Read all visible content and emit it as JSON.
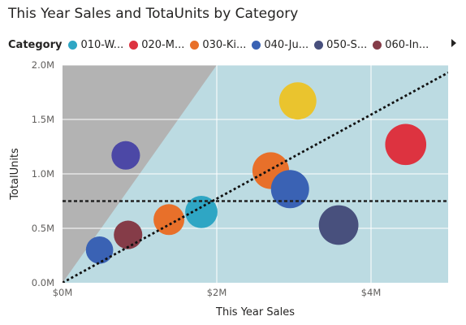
{
  "chart_data": {
    "type": "scatter",
    "title": "This Year Sales and TotaUnits by Category",
    "xlabel": "This Year Sales",
    "ylabel": "TotalUnits",
    "xlim": [
      0,
      5000000
    ],
    "ylim": [
      0,
      2000000
    ],
    "x_ticks": [
      {
        "value": 0,
        "label": "$0M"
      },
      {
        "value": 2000000,
        "label": "$2M"
      },
      {
        "value": 4000000,
        "label": "$4M"
      }
    ],
    "y_ticks": [
      {
        "value": 0,
        "label": "0.0M"
      },
      {
        "value": 500000,
        "label": "0.5M"
      },
      {
        "value": 1000000,
        "label": "1.0M"
      },
      {
        "value": 1500000,
        "label": "1.5M"
      },
      {
        "value": 2000000,
        "label": "2.0M"
      }
    ],
    "legend": {
      "title": "Category",
      "placement": "top-left",
      "items": [
        {
          "label": "010-W...",
          "color": "#2fa6c4"
        },
        {
          "label": "020-M...",
          "color": "#dd3340"
        },
        {
          "label": "030-Ki...",
          "color": "#e8702a"
        },
        {
          "label": "040-Ju...",
          "color": "#3a62b4"
        },
        {
          "label": "050-S...",
          "color": "#48507d"
        },
        {
          "label": "060-In...",
          "color": "#853c48"
        }
      ]
    },
    "points": [
      {
        "x": 1800000,
        "y": 650000,
        "size": 0.55,
        "color": "#2fa6c4"
      },
      {
        "x": 4450000,
        "y": 1270000,
        "size": 0.85,
        "color": "#dd3340"
      },
      {
        "x": 1380000,
        "y": 580000,
        "size": 0.5,
        "color": "#e8702a"
      },
      {
        "x": 2700000,
        "y": 1030000,
        "size": 0.7,
        "color": "#e8702a"
      },
      {
        "x": 3050000,
        "y": 1670000,
        "size": 0.72,
        "color": "#eac42e"
      },
      {
        "x": 2950000,
        "y": 860000,
        "size": 0.75,
        "color": "#3a62b4"
      },
      {
        "x": 480000,
        "y": 300000,
        "size": 0.38,
        "color": "#3a62b4"
      },
      {
        "x": 820000,
        "y": 1170000,
        "size": 0.42,
        "color": "#4c48a6"
      },
      {
        "x": 3580000,
        "y": 530000,
        "size": 0.8,
        "color": "#48507d"
      },
      {
        "x": 850000,
        "y": 440000,
        "size": 0.42,
        "color": "#853c48"
      }
    ],
    "reference_lines": {
      "horizontal_y": 750000,
      "ratio_line": [
        [
          0,
          0
        ],
        [
          5000000,
          1930000
        ]
      ],
      "shaded_region": [
        [
          0,
          0
        ],
        [
          0,
          2000000
        ],
        [
          2000000,
          2000000
        ]
      ]
    },
    "colors": {
      "plot_background": "#bcdbe2",
      "shaded_region": "#b3b3b3",
      "grid": "#ffffff"
    },
    "grid": true
  }
}
